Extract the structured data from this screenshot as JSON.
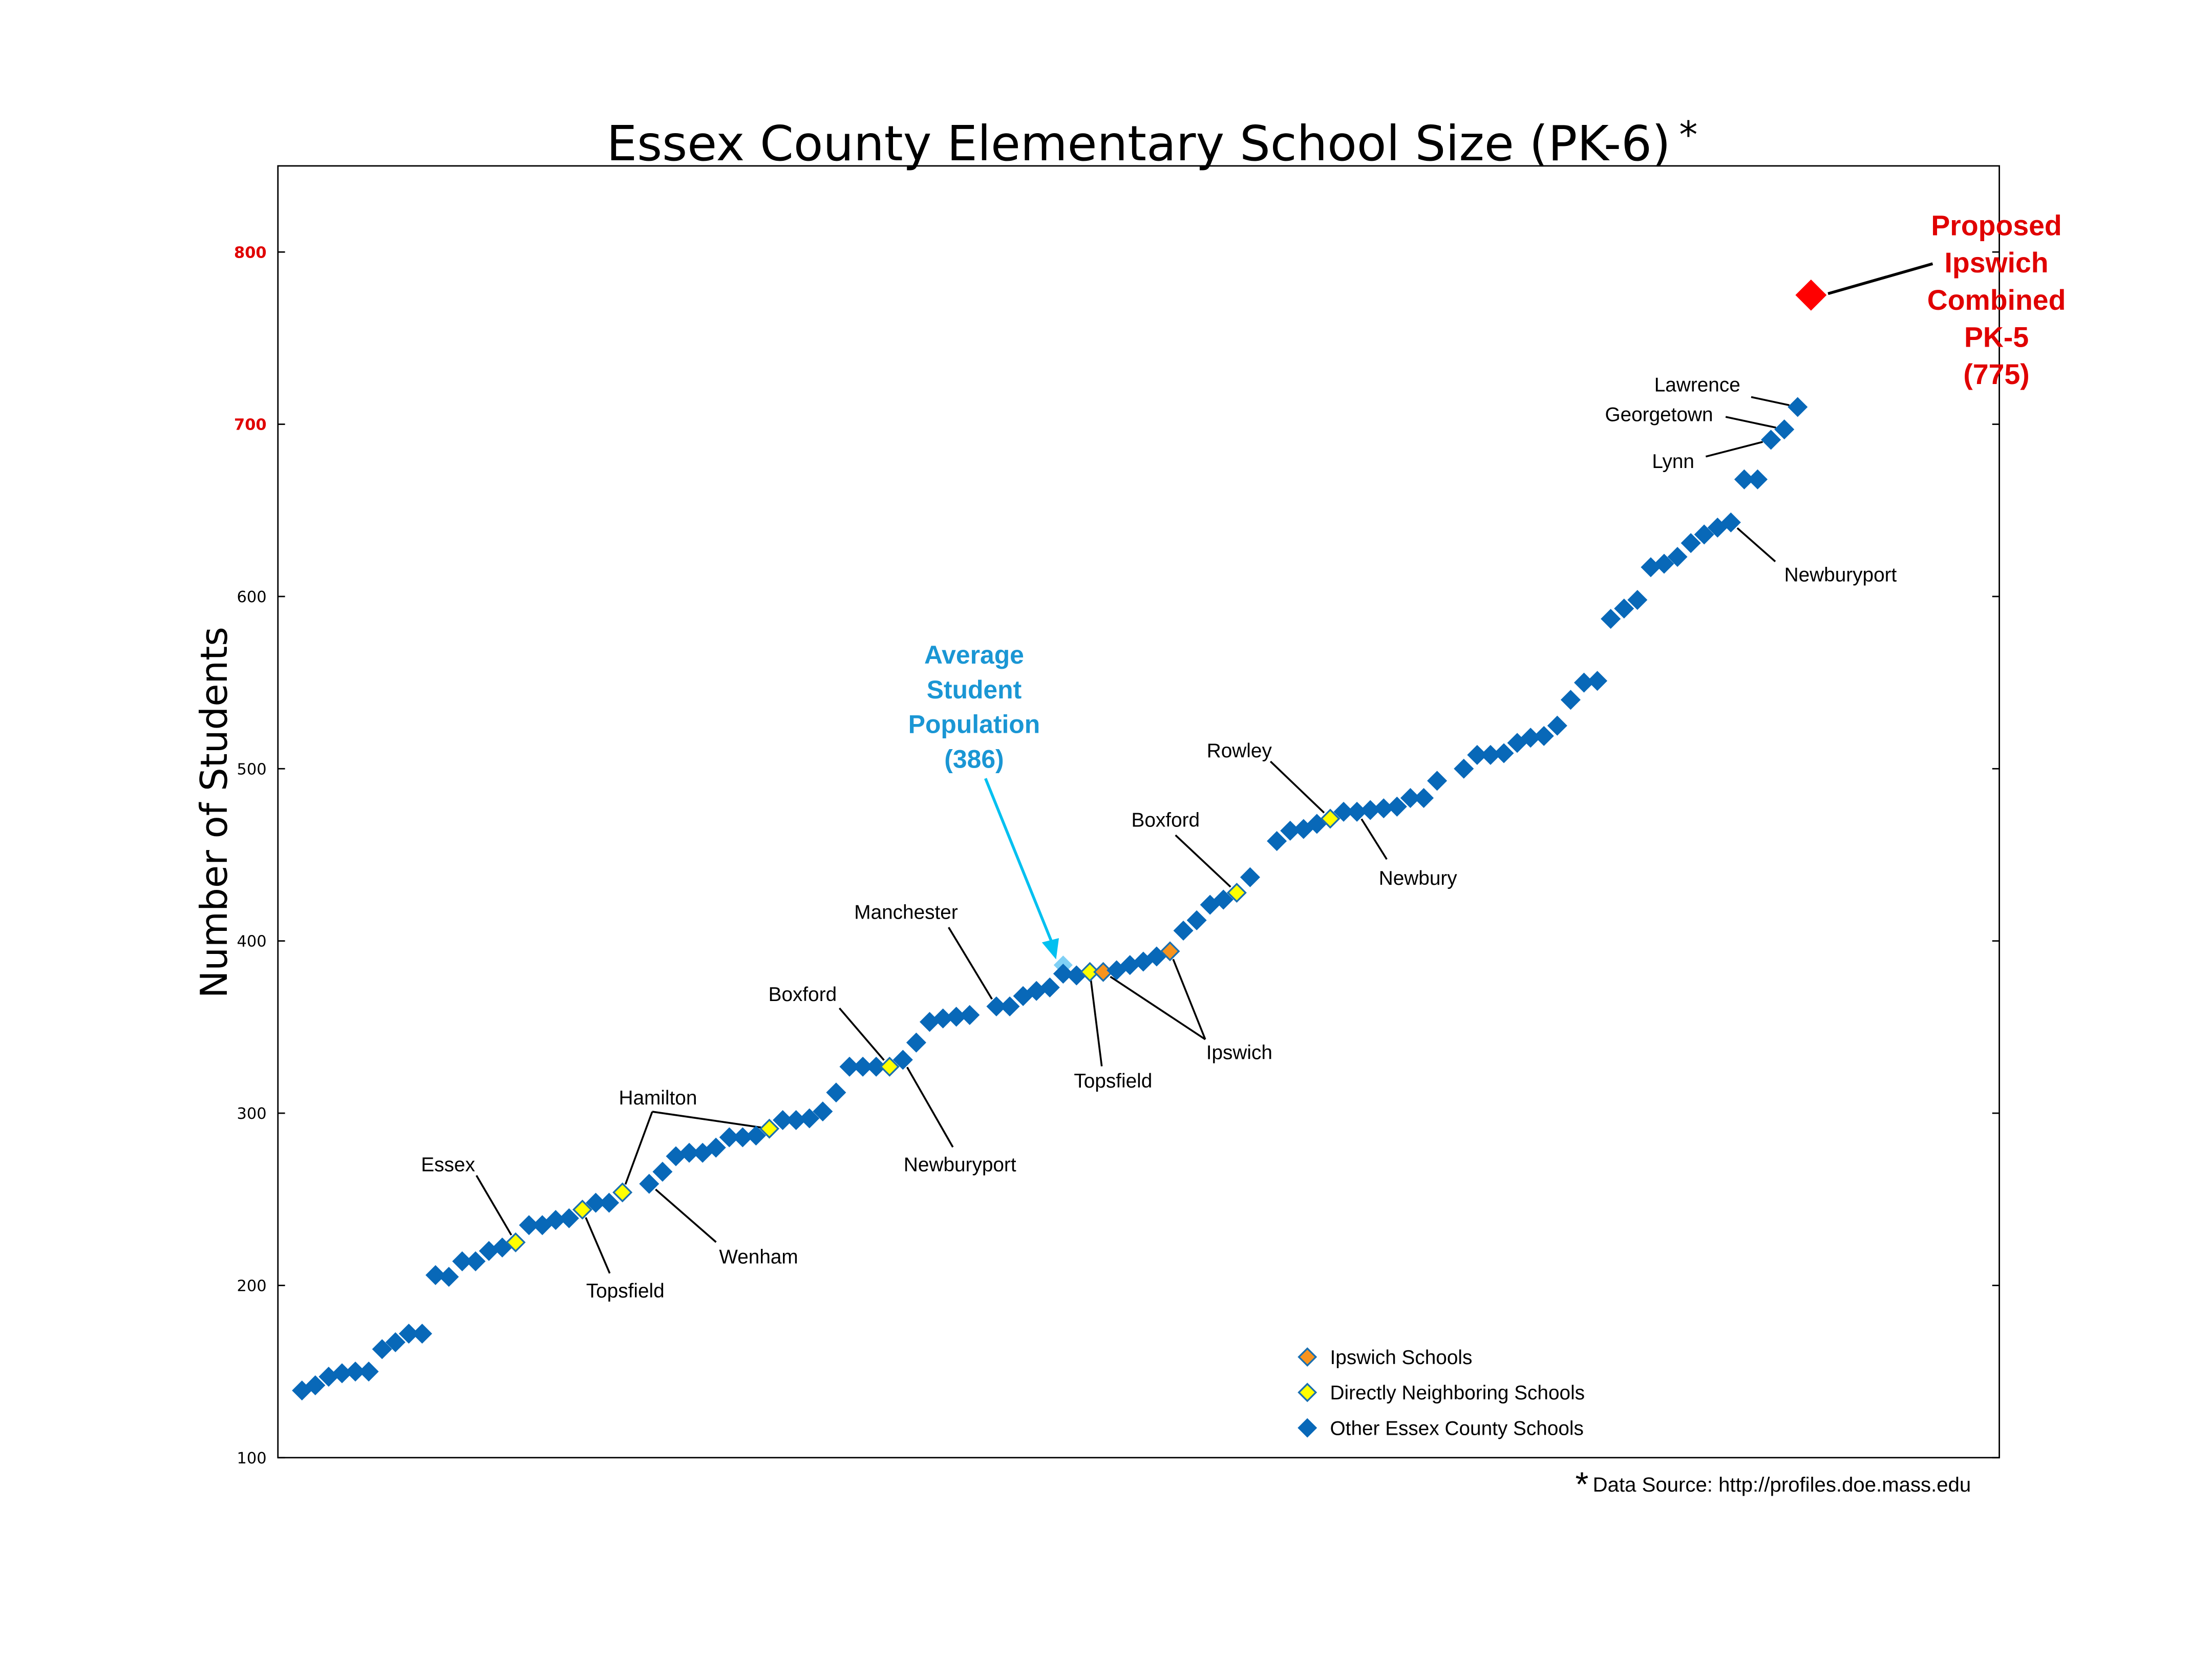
{
  "chart_data": {
    "type": "scatter",
    "title": "Essex County Elementary School Size (PK-6)",
    "title_marker": "*",
    "xlabel": "",
    "ylabel": "Number of Students",
    "ylim": [
      100,
      850
    ],
    "xlim": [
      -1.8,
      127.1
    ],
    "yticks": [
      100,
      200,
      300,
      400,
      500,
      600,
      700,
      800
    ],
    "highlight_ticks": [
      700,
      800
    ],
    "grid": false,
    "legend_position": "bottom-right",
    "colors": {
      "other": "#0868b8",
      "neighbor": "#ffff00",
      "ipswich": "#f7931e",
      "edge": "#1a6fb0",
      "proposed": "#ff0000",
      "average": "#00c0f0",
      "average_text": "#1a96d4",
      "proposed_text": "#e00000"
    },
    "legend": [
      {
        "category": "ipswich",
        "label": "Ipswich Schools"
      },
      {
        "category": "neighbor",
        "label": "Directly Neighboring Schools"
      },
      {
        "category": "other",
        "label": "Other Essex County Schools"
      }
    ],
    "points": [
      [
        0,
        139,
        "other"
      ],
      [
        1,
        142,
        "other"
      ],
      [
        2,
        147,
        "other"
      ],
      [
        3,
        149,
        "other"
      ],
      [
        4,
        150,
        "other"
      ],
      [
        5,
        150,
        "other"
      ],
      [
        6,
        163,
        "other"
      ],
      [
        7,
        167,
        "other"
      ],
      [
        8,
        172,
        "other"
      ],
      [
        9,
        172,
        "other"
      ],
      [
        10,
        206,
        "other"
      ],
      [
        11,
        205,
        "other"
      ],
      [
        12,
        214,
        "other"
      ],
      [
        13,
        214,
        "other"
      ],
      [
        14,
        220,
        "other"
      ],
      [
        15,
        222,
        "other"
      ],
      [
        16,
        225,
        "neighbor"
      ],
      [
        17,
        235,
        "other"
      ],
      [
        18,
        235,
        "other"
      ],
      [
        19,
        238,
        "other"
      ],
      [
        20,
        239,
        "other"
      ],
      [
        21,
        244,
        "neighbor"
      ],
      [
        22,
        248,
        "other"
      ],
      [
        23,
        248,
        "other"
      ],
      [
        24,
        254,
        "neighbor"
      ],
      [
        26,
        259,
        "other"
      ],
      [
        27,
        266,
        "other"
      ],
      [
        28,
        275,
        "other"
      ],
      [
        29,
        277,
        "other"
      ],
      [
        30,
        277,
        "other"
      ],
      [
        31,
        280,
        "other"
      ],
      [
        32,
        286,
        "other"
      ],
      [
        33,
        286,
        "other"
      ],
      [
        34,
        287,
        "other"
      ],
      [
        35,
        291,
        "neighbor"
      ],
      [
        36,
        296,
        "other"
      ],
      [
        37,
        296,
        "other"
      ],
      [
        38,
        297,
        "other"
      ],
      [
        39,
        301,
        "other"
      ],
      [
        40,
        312,
        "other"
      ],
      [
        41,
        327,
        "other"
      ],
      [
        42,
        327,
        "other"
      ],
      [
        43,
        327,
        "other"
      ],
      [
        44,
        327,
        "neighbor"
      ],
      [
        45,
        331,
        "other"
      ],
      [
        46,
        341,
        "other"
      ],
      [
        47,
        353,
        "other"
      ],
      [
        48,
        355,
        "other"
      ],
      [
        49,
        356,
        "other"
      ],
      [
        50,
        357,
        "other"
      ],
      [
        52,
        362,
        "other"
      ],
      [
        53,
        362,
        "other"
      ],
      [
        54,
        368,
        "other"
      ],
      [
        55,
        371,
        "other"
      ],
      [
        56,
        373,
        "other"
      ],
      [
        57,
        381,
        "other"
      ],
      [
        58,
        380,
        "other"
      ],
      [
        59,
        382,
        "neighbor"
      ],
      [
        60,
        382,
        "ipswich"
      ],
      [
        61,
        383,
        "other"
      ],
      [
        62,
        386,
        "other"
      ],
      [
        63,
        388,
        "other"
      ],
      [
        64,
        391,
        "other"
      ],
      [
        65,
        394,
        "ipswich"
      ],
      [
        66,
        406,
        "other"
      ],
      [
        67,
        412,
        "other"
      ],
      [
        68,
        421,
        "other"
      ],
      [
        69,
        424,
        "other"
      ],
      [
        70,
        428,
        "neighbor"
      ],
      [
        71,
        437,
        "other"
      ],
      [
        73,
        458,
        "other"
      ],
      [
        74,
        464,
        "other"
      ],
      [
        75,
        465,
        "other"
      ],
      [
        76,
        468,
        "other"
      ],
      [
        77,
        471,
        "neighbor"
      ],
      [
        78,
        475,
        "other"
      ],
      [
        79,
        475,
        "other"
      ],
      [
        80,
        476,
        "other"
      ],
      [
        81,
        477,
        "other"
      ],
      [
        82,
        478,
        "other"
      ],
      [
        83,
        483,
        "other"
      ],
      [
        84,
        483,
        "other"
      ],
      [
        85,
        493,
        "other"
      ],
      [
        87,
        500,
        "other"
      ],
      [
        88,
        508,
        "other"
      ],
      [
        89,
        508,
        "other"
      ],
      [
        90,
        509,
        "other"
      ],
      [
        91,
        515,
        "other"
      ],
      [
        92,
        518,
        "other"
      ],
      [
        93,
        519,
        "other"
      ],
      [
        94,
        525,
        "other"
      ],
      [
        95,
        540,
        "other"
      ],
      [
        96,
        550,
        "other"
      ],
      [
        97,
        551,
        "other"
      ],
      [
        98,
        587,
        "other"
      ],
      [
        99,
        593,
        "other"
      ],
      [
        100,
        598,
        "other"
      ],
      [
        101,
        617,
        "other"
      ],
      [
        102,
        619,
        "other"
      ],
      [
        103,
        623,
        "other"
      ],
      [
        104,
        631,
        "other"
      ],
      [
        105,
        636,
        "other"
      ],
      [
        106,
        640,
        "other"
      ],
      [
        107,
        643,
        "other"
      ],
      [
        108,
        668,
        "other"
      ],
      [
        109,
        668,
        "other"
      ],
      [
        110,
        691,
        "other"
      ],
      [
        111,
        697,
        "other"
      ],
      [
        112,
        710,
        "other"
      ]
    ],
    "average": {
      "x": 57,
      "value": 386,
      "lines": [
        "Average",
        "Student",
        "Population",
        "(386)"
      ]
    },
    "proposed": {
      "x": 113,
      "value": 775,
      "lines": [
        "Proposed",
        "Ipswich",
        "Combined",
        "PK-5",
        "(775)"
      ]
    },
    "annotations": [
      {
        "text": "Essex",
        "targets": [
          16
        ]
      },
      {
        "text": "Topsfield",
        "targets": [
          21
        ]
      },
      {
        "text": "Hamilton",
        "targets": [
          24,
          35
        ]
      },
      {
        "text": "Wenham",
        "targets": [
          26
        ]
      },
      {
        "text": "Boxford",
        "targets": [
          44
        ]
      },
      {
        "text": "Newburyport",
        "targets": [
          45
        ]
      },
      {
        "text": "Manchester",
        "targets": [
          52
        ]
      },
      {
        "text": "Topsfield",
        "targets": [
          59
        ]
      },
      {
        "text": "Ipswich",
        "targets": [
          60,
          65
        ]
      },
      {
        "text": "Boxford",
        "targets": [
          70
        ]
      },
      {
        "text": "Rowley",
        "targets": [
          77
        ]
      },
      {
        "text": "Newbury",
        "targets": [
          79
        ]
      },
      {
        "text": "Newburyport",
        "targets": [
          107
        ]
      },
      {
        "text": "Lynn",
        "targets": [
          110
        ]
      },
      {
        "text": "Georgetown",
        "targets": [
          111
        ]
      },
      {
        "text": "Lawrence",
        "targets": [
          112
        ]
      }
    ],
    "footnote_marker": "*",
    "footnote": "Data Source: http://profiles.doe.mass.edu"
  }
}
